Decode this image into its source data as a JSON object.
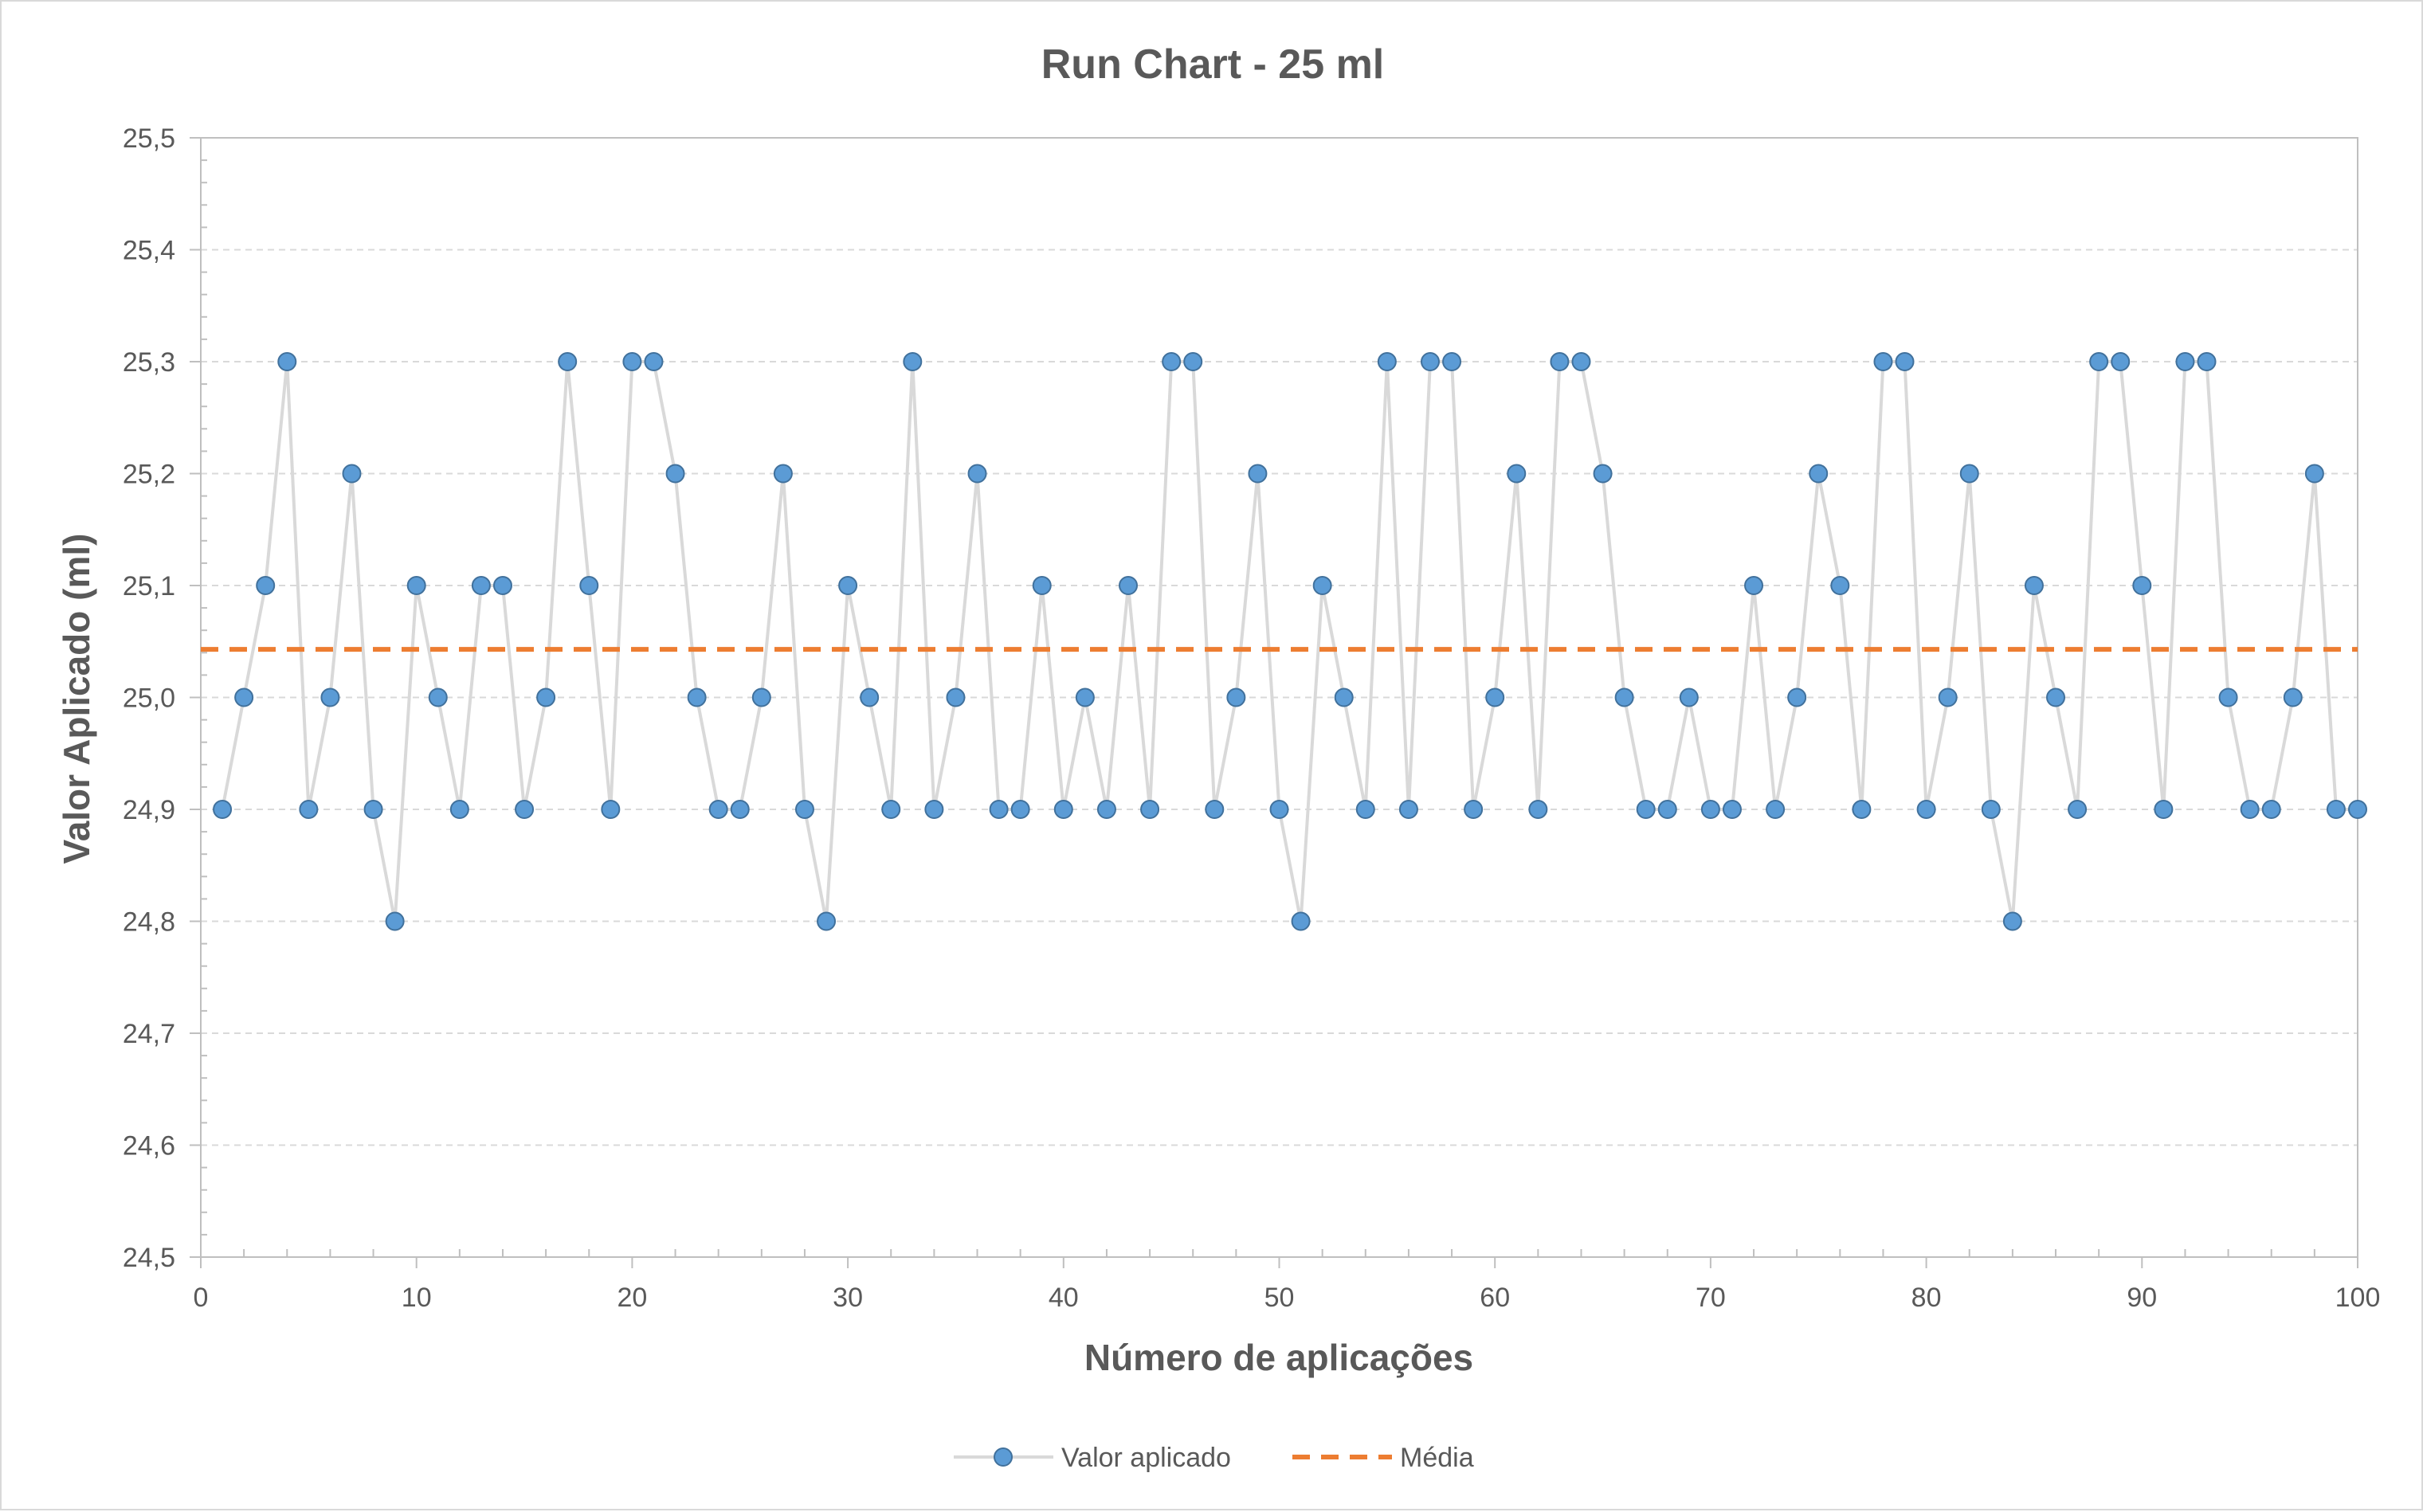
{
  "chart_data": {
    "type": "line",
    "title": "Run Chart - 25 ml",
    "xlabel": "Número de aplicações",
    "ylabel": "Valor Aplicado (ml)",
    "xlim": [
      0,
      100
    ],
    "ylim": [
      24.5,
      25.5
    ],
    "x_ticks": [
      "0",
      "10",
      "20",
      "30",
      "40",
      "50",
      "60",
      "70",
      "80",
      "90",
      "100"
    ],
    "y_ticks": [
      "25,5",
      "25,4",
      "25,3",
      "25,2",
      "25,1",
      "25,0",
      "24,9",
      "24,8",
      "24,7",
      "24,6",
      "24,5"
    ],
    "grid": "horizontal dashed",
    "legend_position": "bottom",
    "series": [
      {
        "name": "Valor aplicado",
        "style": "line-with-markers",
        "line_color": "#d9d9d9",
        "marker_color": "#5b9bd5",
        "x": [
          1,
          2,
          3,
          4,
          5,
          6,
          7,
          8,
          9,
          10,
          11,
          12,
          13,
          14,
          15,
          16,
          17,
          18,
          19,
          20,
          21,
          22,
          23,
          24,
          25,
          26,
          27,
          28,
          29,
          30,
          31,
          32,
          33,
          34,
          35,
          36,
          37,
          38,
          39,
          40,
          41,
          42,
          43,
          44,
          45,
          46,
          47,
          48,
          49,
          50,
          51,
          52,
          53,
          54,
          55,
          56,
          57,
          58,
          59,
          60,
          61,
          62,
          63,
          64,
          65,
          66,
          67,
          68,
          69,
          70,
          71,
          72,
          73,
          74,
          75,
          76,
          77,
          78,
          79,
          80,
          81,
          82,
          83,
          84,
          85,
          86,
          87,
          88,
          89,
          90,
          91,
          92,
          93,
          94,
          95,
          96,
          97,
          98,
          99,
          100
        ],
        "values": [
          24.9,
          25.0,
          25.1,
          25.3,
          24.9,
          25.0,
          25.2,
          24.9,
          24.8,
          25.1,
          25.0,
          24.9,
          25.1,
          25.1,
          24.9,
          25.0,
          25.3,
          25.1,
          24.9,
          25.3,
          25.3,
          25.2,
          25.0,
          24.9,
          24.9,
          25.0,
          25.2,
          24.9,
          24.8,
          25.1,
          25.0,
          24.9,
          25.3,
          24.9,
          25.0,
          25.2,
          24.9,
          24.9,
          25.1,
          24.9,
          25.0,
          24.9,
          25.1,
          24.9,
          25.3,
          25.3,
          24.9,
          25.0,
          25.2,
          24.9,
          24.8,
          25.1,
          25.0,
          24.9,
          25.3,
          24.9,
          25.3,
          25.3,
          24.9,
          25.0,
          25.2,
          24.9,
          25.3,
          25.3,
          25.2,
          25.0,
          24.9,
          24.9,
          25.0,
          24.9,
          24.9,
          25.1,
          24.9,
          25.0,
          25.2,
          25.1,
          24.9,
          25.3,
          25.3,
          24.9,
          25.0,
          25.2,
          24.9,
          24.8,
          25.1,
          25.0,
          24.9,
          25.3,
          25.3,
          25.1,
          24.9,
          25.3,
          25.3,
          25.0,
          24.9,
          24.9,
          25.0,
          25.2,
          24.9,
          24.9
        ]
      },
      {
        "name": "Média",
        "style": "dashed-line",
        "line_color": "#ed7d31",
        "value": 25.043
      }
    ]
  }
}
